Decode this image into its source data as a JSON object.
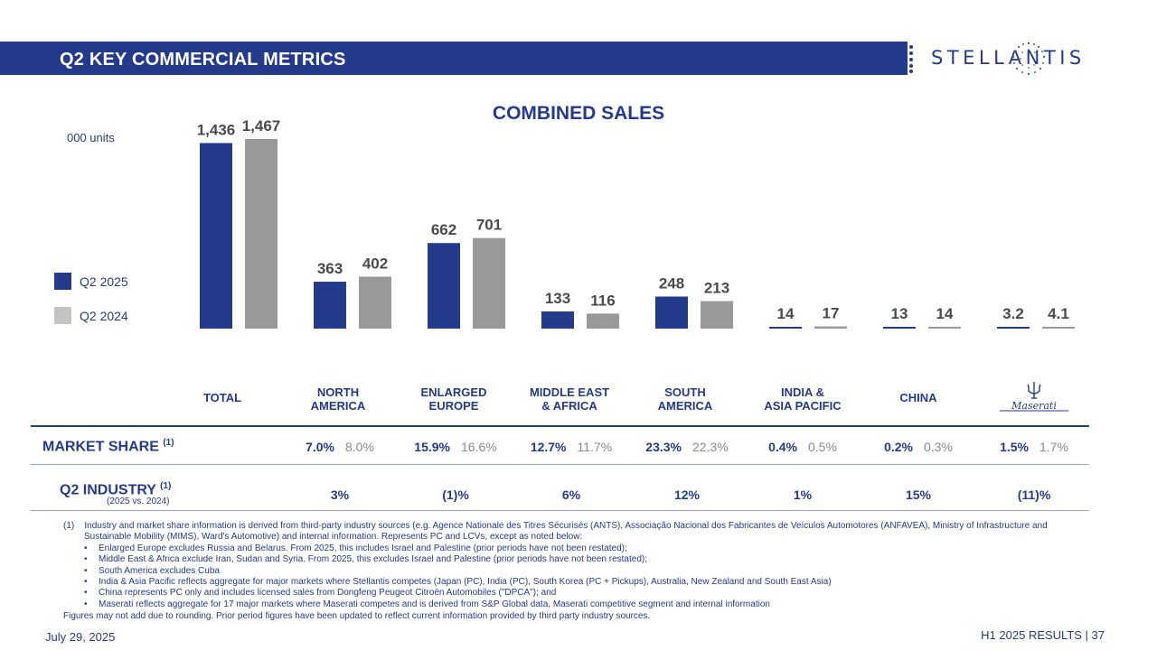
{
  "header": {
    "title": "Q2 KEY COMMERCIAL METRICS",
    "logo_text": "STELLANTIS"
  },
  "units_label": "000 units",
  "legend": [
    {
      "label": "Q2 2025",
      "color": "#243a8a"
    },
    {
      "label": "Q2 2024",
      "color": "#999999"
    }
  ],
  "chart_data": {
    "type": "bar",
    "title": "COMBINED SALES",
    "categories": [
      "TOTAL",
      "NORTH AMERICA",
      "ENLARGED EUROPE",
      "MIDDLE EAST & AFRICA",
      "SOUTH AMERICA",
      "INDIA & ASIA PACIFIC",
      "CHINA",
      "Maserati"
    ],
    "series": [
      {
        "name": "Q2 2025",
        "color": "#243a8a",
        "values": [
          1436,
          363,
          662,
          133,
          248,
          14,
          13,
          3.2
        ],
        "labels": [
          "1,436",
          "363",
          "662",
          "133",
          "248",
          "14",
          "13",
          "3.2"
        ]
      },
      {
        "name": "Q2 2024",
        "color": "#999999",
        "values": [
          1467,
          402,
          701,
          116,
          213,
          17,
          14,
          4.1
        ],
        "labels": [
          "1,467",
          "402",
          "701",
          "116",
          "213",
          "17",
          "14",
          "4.1"
        ]
      }
    ],
    "ylabel": "000 units",
    "grid": false,
    "legend_position": "left"
  },
  "category_labels": [
    {
      "line1": "TOTAL",
      "line2": ""
    },
    {
      "line1": "NORTH",
      "line2": "AMERICA"
    },
    {
      "line1": "ENLARGED",
      "line2": "EUROPE"
    },
    {
      "line1": "MIDDLE EAST",
      "line2": "& AFRICA"
    },
    {
      "line1": "SOUTH",
      "line2": "AMERICA"
    },
    {
      "line1": "INDIA &",
      "line2": "ASIA PACIFIC"
    },
    {
      "line1": "CHINA",
      "line2": ""
    }
  ],
  "maserati_logo_text": "Maserati",
  "market_share": {
    "title": "MARKET SHARE",
    "note_ref": "(1)",
    "values": [
      {
        "cur": "7.0%",
        "prev": "8.0%"
      },
      {
        "cur": "15.9%",
        "prev": "16.6%"
      },
      {
        "cur": "12.7%",
        "prev": "11.7%"
      },
      {
        "cur": "23.3%",
        "prev": "22.3%"
      },
      {
        "cur": "0.4%",
        "prev": "0.5%"
      },
      {
        "cur": "0.2%",
        "prev": "0.3%"
      },
      {
        "cur": "1.5%",
        "prev": "1.7%"
      }
    ]
  },
  "industry": {
    "title": "Q2 INDUSTRY",
    "note_ref": "(1)",
    "subtitle": "(2025 vs. 2024)",
    "values": [
      "3%",
      "(1)%",
      "6%",
      "12%",
      "1%",
      "15%",
      "(11)%"
    ]
  },
  "footnotes": {
    "marker": "(1)",
    "main": "Industry and market share information is derived from third-party industry sources (e.g. Agence Nationale des Titres Sécurisés (ANTS), Associação Nacional dos Fabricantes de Veículos Automotores (ANFAVEA), Ministry of Infrastructure and Sustainable Mobility (MIMS), Ward's Automotive) and internal information.  Represents PC and LCVs, except as noted below:",
    "bullets": [
      "Enlarged Europe excludes Russia and Belarus. From 2025, this includes Israel and Palestine (prior periods have not been restated);",
      "Middle East & Africa exclude Iran, Sudan and Syria. From 2025, this excludes Israel and Palestine (prior periods have not been restated);",
      "South America excludes Cuba",
      "India & Asia Pacific reflects aggregate for major markets where Stellantis competes (Japan (PC), India (PC), South Korea (PC + Pickups), Australia, New Zealand and South East Asia)",
      "China represents PC only and includes licensed sales from Dongfeng Peugeot Citroën Automobiles (\"DPCA\"); and",
      "Maserati reflects aggregate for 17 major markets where Maserati competes and is derived from S&P Global data, Maserati competitive segment and internal information"
    ],
    "end": "Figures may not add due to rounding.  Prior period figures have been updated to reflect current information provided by third party industry sources."
  },
  "footer": {
    "date": "July 29, 2025",
    "page_ref": "H1 2025 RESULTS  |  37"
  }
}
